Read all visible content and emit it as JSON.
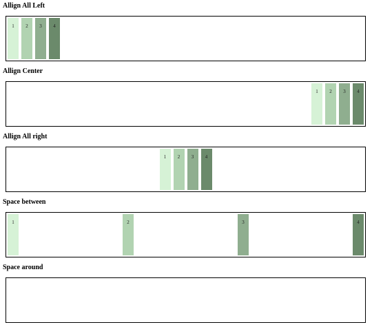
{
  "sections": [
    {
      "title": "Allign All Left",
      "items": [
        "1",
        "2",
        "3",
        "4"
      ]
    },
    {
      "title": "Allign Center",
      "items": [
        "1",
        "2",
        "3",
        "4"
      ]
    },
    {
      "title": "Allign All right",
      "items": [
        "1",
        "2",
        "3",
        "4"
      ]
    },
    {
      "title": "Space between",
      "items": [
        "1",
        "2",
        "3",
        "4"
      ]
    },
    {
      "title": "Space around",
      "items": []
    }
  ]
}
